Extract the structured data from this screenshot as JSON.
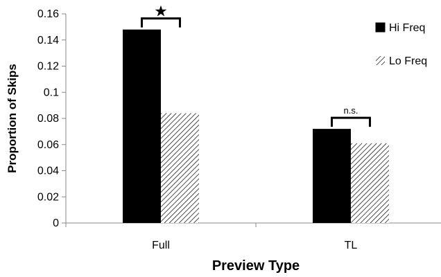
{
  "chart_data": {
    "type": "bar",
    "xlabel": "Preview Type",
    "ylabel": "Proportion of Skips",
    "categories": [
      "Full",
      "TL"
    ],
    "series": [
      {
        "name": "Hi Freq",
        "values": [
          0.148,
          0.072
        ],
        "color": "#000000",
        "fill": "solid"
      },
      {
        "name": "Lo Freq",
        "values": [
          0.084,
          0.061
        ],
        "color": "#000000",
        "fill": "diagonal-hatch"
      }
    ],
    "ylim": [
      0,
      0.16
    ],
    "yticks": [
      0,
      0.02,
      0.04,
      0.06,
      0.08,
      0.1,
      0.12,
      0.14,
      0.16
    ],
    "ytick_labels": [
      "0",
      "0.02",
      "0.04",
      "0.06",
      "0.08",
      "0.1",
      "0.12",
      "0.14",
      "0.16"
    ],
    "grid": false,
    "legend_position": "right",
    "annotations": [
      {
        "category": "Full",
        "label": "★",
        "type": "significance-bracket"
      },
      {
        "category": "TL",
        "label": "n.s.",
        "type": "significance-bracket"
      }
    ]
  }
}
